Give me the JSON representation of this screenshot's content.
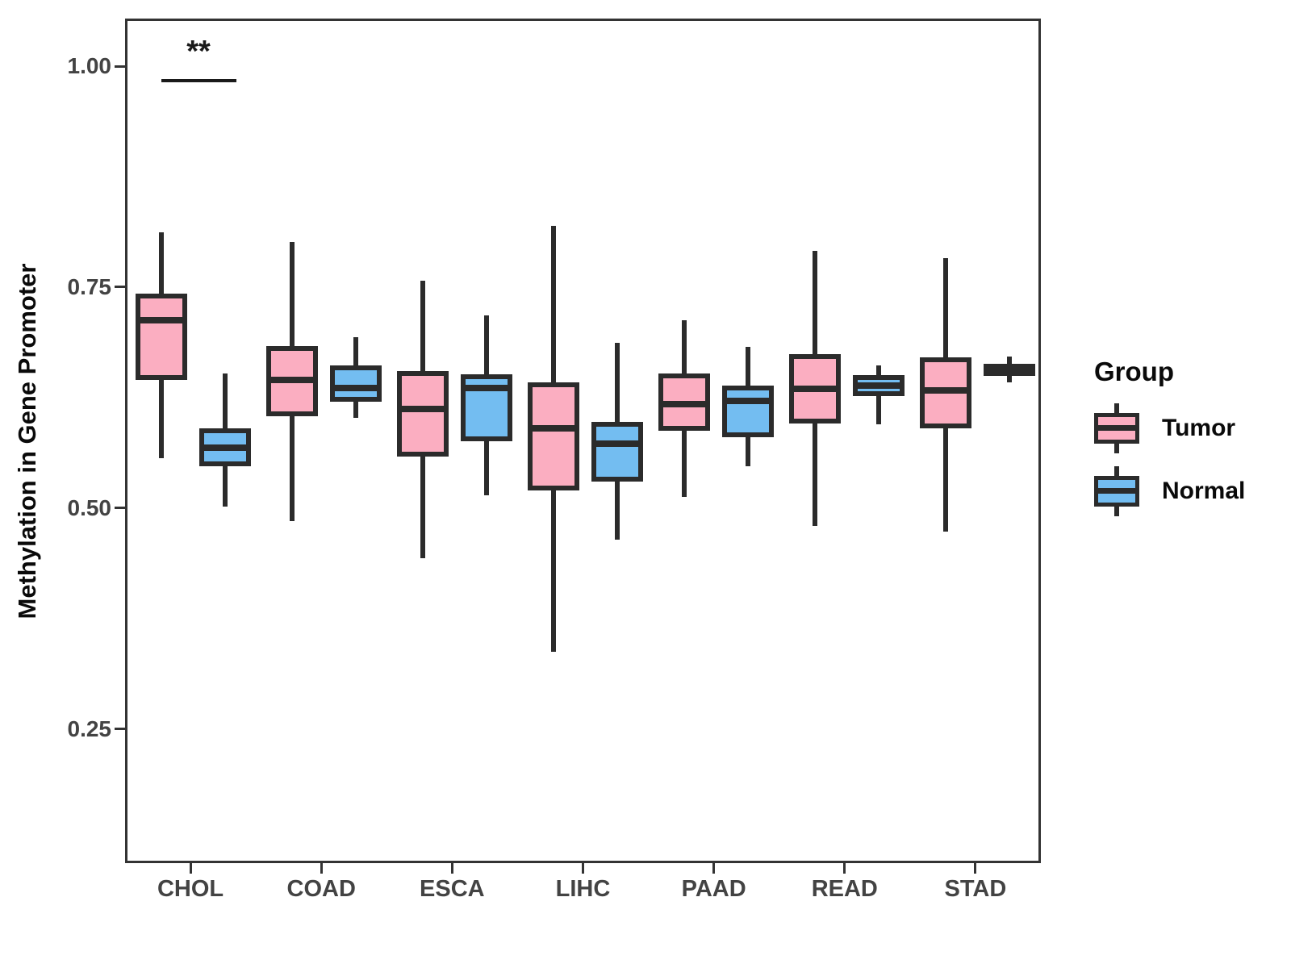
{
  "legend": {
    "title": "Group",
    "items": [
      {
        "label": "Tumor",
        "color": "#FBAEC1"
      },
      {
        "label": "Normal",
        "color": "#73BDF1"
      }
    ]
  },
  "annotation": {
    "text": "**",
    "category": "CHOL",
    "line_y": 0.988
  },
  "colors": {
    "tumor_fill": "#FBAEC1",
    "normal_fill": "#73BDF1",
    "stroke": "#2B2B2B",
    "axis_text": "#434343",
    "title_text": "#0A0A0A"
  },
  "chart_data": {
    "type": "boxplot",
    "title": "",
    "xlabel": "",
    "ylabel": "Methylation in Gene Promoter",
    "grid": false,
    "legend_position": "right",
    "ylim": [
      0.098,
      1.054
    ],
    "y_ticks": [
      {
        "label": "1.00",
        "value": 1.0
      },
      {
        "label": "0.75",
        "value": 0.75
      },
      {
        "label": "0.50",
        "value": 0.5
      },
      {
        "label": "0.25",
        "value": 0.25
      }
    ],
    "categories": [
      "CHOL",
      "COAD",
      "ESCA",
      "LIHC",
      "PAAD",
      "READ",
      "STAD"
    ],
    "series": [
      {
        "name": "Tumor",
        "color": "#FBAEC1",
        "boxes": [
          {
            "category": "CHOL",
            "whisker_low": 0.559,
            "q1": 0.648,
            "median": 0.715,
            "q3": 0.745,
            "whisker_high": 0.815
          },
          {
            "category": "COAD",
            "whisker_low": 0.488,
            "q1": 0.607,
            "median": 0.648,
            "q3": 0.686,
            "whisker_high": 0.804
          },
          {
            "category": "ESCA",
            "whisker_low": 0.446,
            "q1": 0.561,
            "median": 0.615,
            "q3": 0.658,
            "whisker_high": 0.76
          },
          {
            "category": "LIHC",
            "whisker_low": 0.34,
            "q1": 0.523,
            "median": 0.593,
            "q3": 0.645,
            "whisker_high": 0.822
          },
          {
            "category": "PAAD",
            "whisker_low": 0.515,
            "q1": 0.59,
            "median": 0.62,
            "q3": 0.655,
            "whisker_high": 0.715
          },
          {
            "category": "READ",
            "whisker_low": 0.482,
            "q1": 0.598,
            "median": 0.638,
            "q3": 0.677,
            "whisker_high": 0.794
          },
          {
            "category": "STAD",
            "whisker_low": 0.476,
            "q1": 0.593,
            "median": 0.636,
            "q3": 0.673,
            "whisker_high": 0.786
          }
        ]
      },
      {
        "name": "Normal",
        "color": "#73BDF1",
        "boxes": [
          {
            "category": "CHOL",
            "whisker_low": 0.504,
            "q1": 0.55,
            "median": 0.571,
            "q3": 0.593,
            "whisker_high": 0.655
          },
          {
            "category": "COAD",
            "whisker_low": 0.605,
            "q1": 0.623,
            "median": 0.639,
            "q3": 0.664,
            "whisker_high": 0.696
          },
          {
            "category": "ESCA",
            "whisker_low": 0.517,
            "q1": 0.578,
            "median": 0.639,
            "q3": 0.654,
            "whisker_high": 0.721
          },
          {
            "category": "LIHC",
            "whisker_low": 0.467,
            "q1": 0.533,
            "median": 0.576,
            "q3": 0.6,
            "whisker_high": 0.69
          },
          {
            "category": "PAAD",
            "whisker_low": 0.55,
            "q1": 0.583,
            "median": 0.624,
            "q3": 0.641,
            "whisker_high": 0.685
          },
          {
            "category": "READ",
            "whisker_low": 0.597,
            "q1": 0.629,
            "median": 0.641,
            "q3": 0.653,
            "whisker_high": 0.664
          },
          {
            "category": "STAD",
            "whisker_low": 0.645,
            "q1": 0.652,
            "median": 0.66,
            "q3": 0.666,
            "whisker_high": 0.674
          }
        ]
      }
    ]
  }
}
